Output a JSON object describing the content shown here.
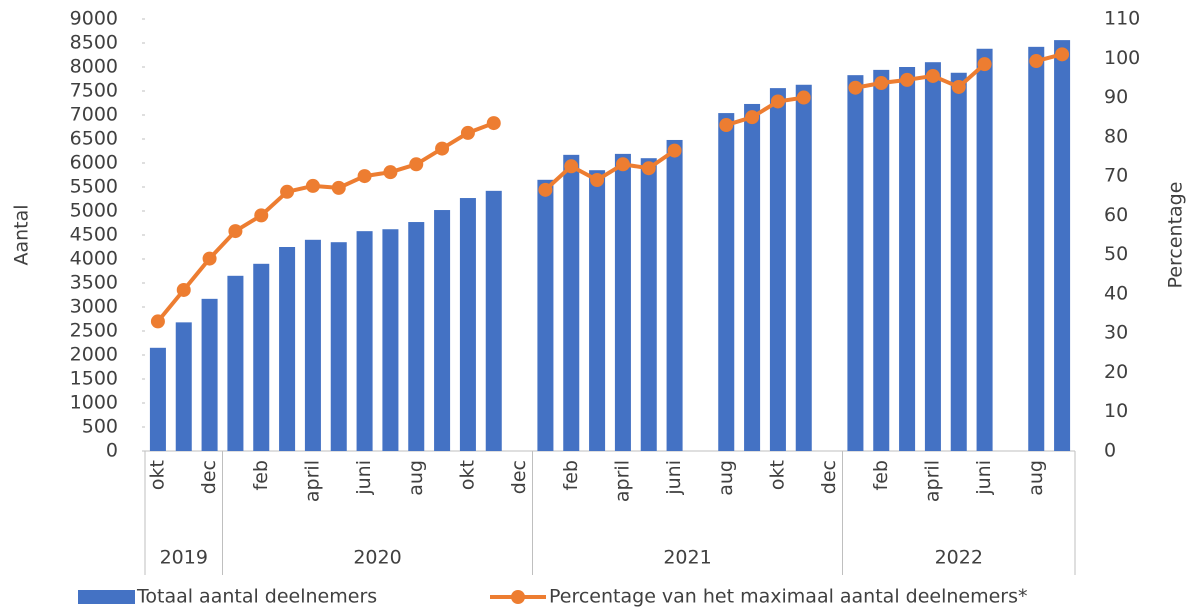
{
  "chart_data": {
    "type": "bar-line",
    "categories": [
      "okt",
      null,
      "dec",
      null,
      "feb",
      null,
      "april",
      null,
      "juni",
      null,
      "aug",
      null,
      "okt",
      null,
      "dec",
      null,
      "feb",
      null,
      "april",
      null,
      "juni",
      null,
      "aug",
      null,
      "okt",
      null,
      "dec",
      null,
      "feb",
      null,
      "april",
      null,
      "juni",
      null,
      "aug",
      null
    ],
    "year_groups": [
      {
        "label": "2019",
        "months": 3
      },
      {
        "label": "2020",
        "months": 12
      },
      {
        "label": "2021",
        "months": 12
      },
      {
        "label": "2022",
        "months": 9
      }
    ],
    "y_label": "Aantal",
    "y2_label": "Percentage",
    "ylim": [
      0,
      9000
    ],
    "yticks": [
      0,
      500,
      1000,
      1500,
      2000,
      2500,
      3000,
      3500,
      4000,
      4500,
      5000,
      5500,
      6000,
      6500,
      7000,
      7500,
      8000,
      8500,
      9000
    ],
    "y2lim": [
      0,
      110
    ],
    "y2ticks": [
      0,
      10,
      20,
      30,
      40,
      50,
      60,
      70,
      80,
      90,
      100,
      110
    ],
    "series": [
      {
        "name": "Totaal aantal deelnemers",
        "kind": "bar",
        "color": "#4472c4",
        "values": [
          2150,
          2680,
          3170,
          3650,
          3900,
          4250,
          4400,
          4350,
          4580,
          4620,
          4770,
          5020,
          5270,
          5420,
          null,
          5650,
          6170,
          5850,
          6190,
          6100,
          6480,
          null,
          7040,
          7230,
          7560,
          7630,
          null,
          7830,
          7940,
          8000,
          8100,
          7880,
          8380,
          null,
          8420,
          8560
        ]
      },
      {
        "name": "Percentage van het maximaal aantal deelnemers*",
        "kind": "line",
        "axis": "y2",
        "color": "#ed7d31",
        "values": [
          33,
          41,
          49,
          56,
          60,
          66,
          67.5,
          67,
          70,
          71,
          73,
          77,
          81,
          83.5,
          null,
          66.5,
          72.5,
          69,
          73,
          72,
          76.5,
          null,
          83,
          85,
          89,
          90,
          null,
          92.5,
          93.7,
          94.5,
          95.5,
          92.7,
          98.5,
          null,
          99.3,
          101
        ]
      }
    ]
  }
}
